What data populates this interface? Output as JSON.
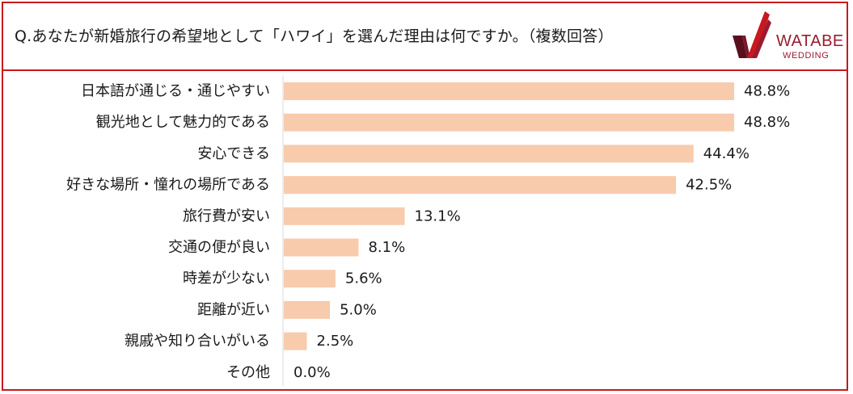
{
  "header": {
    "question": "Q.あなたが新婚旅行の希望地として「ハワイ」を選んだ理由は何ですか。（複数回答）"
  },
  "logo": {
    "line1": "WATABE",
    "line2": "WEDDING",
    "brand_color": "#9b1b30"
  },
  "colors": {
    "border": "#c8191e",
    "bar": "#f8cbad",
    "axis": "#d9d9d9"
  },
  "chart_data": {
    "type": "bar",
    "orientation": "horizontal",
    "title": "",
    "xlabel": "",
    "ylabel": "",
    "xlim": [
      0,
      50
    ],
    "grid": false,
    "categories": [
      "日本語が通じる・通じやすい",
      "観光地として魅力的である",
      "安心できる",
      "好きな場所・憧れの場所である",
      "旅行費が安い",
      "交通の便が良い",
      "時差が少ない",
      "距離が近い",
      "親戚や知り合いがいる",
      "その他"
    ],
    "values": [
      48.8,
      48.8,
      44.4,
      42.5,
      13.1,
      8.1,
      5.6,
      5.0,
      2.5,
      0.0
    ],
    "value_labels": [
      "48.8%",
      "48.8%",
      "44.4%",
      "42.5%",
      "13.1%",
      "8.1%",
      "5.6%",
      "5.0%",
      "2.5%",
      "0.0%"
    ]
  }
}
